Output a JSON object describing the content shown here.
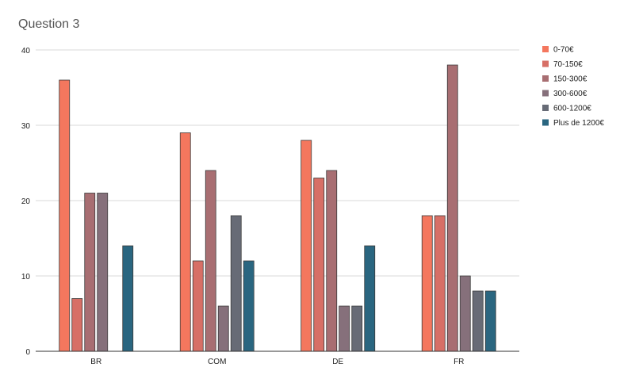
{
  "chart_data": {
    "type": "bar",
    "title": "Question 3",
    "xlabel": "",
    "ylabel": "",
    "categories": [
      "BR",
      "COM",
      "DE",
      "FR"
    ],
    "ylim": [
      0,
      40
    ],
    "yticks": [
      0,
      10,
      20,
      30,
      40
    ],
    "grid": true,
    "legend_position": "right",
    "series": [
      {
        "name": "0-70€",
        "color": "#f4775e",
        "values": [
          36,
          29,
          28,
          18
        ]
      },
      {
        "name": "70-150€",
        "color": "#d76f66",
        "values": [
          7,
          12,
          23,
          18
        ]
      },
      {
        "name": "150-300€",
        "color": "#a86e72",
        "values": [
          21,
          24,
          24,
          38
        ]
      },
      {
        "name": "300-600€",
        "color": "#86707b",
        "values": [
          21,
          6,
          6,
          10
        ]
      },
      {
        "name": "600-1200€",
        "color": "#676b76",
        "values": [
          0,
          18,
          6,
          8
        ]
      },
      {
        "name": "Plus de 1200€",
        "color": "#2a6680",
        "values": [
          14,
          12,
          14,
          8
        ]
      }
    ]
  }
}
